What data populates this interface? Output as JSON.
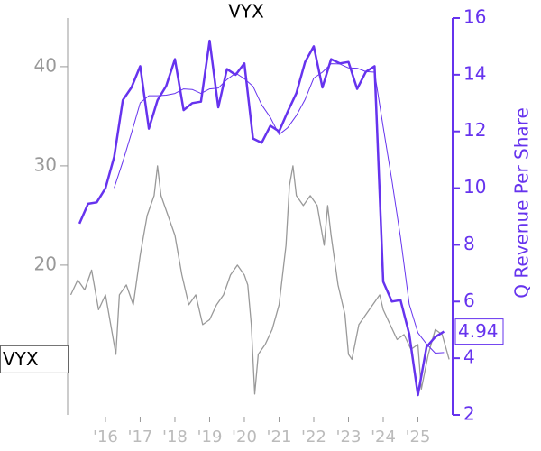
{
  "chart_data": {
    "type": "line",
    "title": "VYX",
    "y2label": "Q Revenue Per Share",
    "xlim": [
      2014.91,
      2026.0
    ],
    "xticks": [
      {
        "value": 2016,
        "label": "'16"
      },
      {
        "value": 2017,
        "label": "'17"
      },
      {
        "value": 2018,
        "label": "'18"
      },
      {
        "value": 2019,
        "label": "'19"
      },
      {
        "value": 2020,
        "label": "'20"
      },
      {
        "value": 2021,
        "label": "'21"
      },
      {
        "value": 2022,
        "label": "'22"
      },
      {
        "value": 2023,
        "label": "'23"
      },
      {
        "value": 2024,
        "label": "'24"
      },
      {
        "value": 2025,
        "label": "'25"
      }
    ],
    "ylim": [
      4.9,
      44.9
    ],
    "yticks": [
      20,
      30,
      40
    ],
    "y2lim": [
      2,
      16
    ],
    "y2ticks": [
      2,
      4,
      6,
      8,
      10,
      12,
      14,
      16
    ],
    "series": [
      {
        "name": "VYX",
        "color": "#999999",
        "axis": "y",
        "x": [
          2015.0,
          2015.2,
          2015.4,
          2015.6,
          2015.8,
          2016.0,
          2016.2,
          2016.3,
          2016.4,
          2016.6,
          2016.8,
          2017.0,
          2017.1,
          2017.2,
          2017.4,
          2017.5,
          2017.6,
          2017.8,
          2018.0,
          2018.2,
          2018.4,
          2018.6,
          2018.8,
          2019.0,
          2019.2,
          2019.4,
          2019.6,
          2019.8,
          2020.0,
          2020.1,
          2020.2,
          2020.3,
          2020.4,
          2020.6,
          2020.8,
          2021.0,
          2021.2,
          2021.3,
          2021.4,
          2021.5,
          2021.7,
          2021.9,
          2022.1,
          2022.3,
          2022.4,
          2022.5,
          2022.7,
          2022.9,
          2023.0,
          2023.1,
          2023.3,
          2023.5,
          2023.7,
          2023.9,
          2024.0,
          2024.2,
          2024.4,
          2024.6,
          2024.8,
          2025.0,
          2025.1,
          2025.3,
          2025.5,
          2025.7,
          2025.9
        ],
        "values": [
          17,
          18.5,
          17.5,
          19.5,
          15.5,
          17,
          13,
          11,
          17,
          18,
          16,
          21,
          23,
          25,
          27,
          30,
          27,
          25,
          23,
          19,
          16,
          17,
          14,
          14.5,
          16,
          17,
          19,
          20,
          19,
          18,
          14,
          7,
          11,
          12,
          13.5,
          16,
          22,
          28,
          30,
          27,
          26,
          27,
          26,
          22,
          26,
          23,
          18,
          15,
          11,
          10.5,
          14,
          15,
          16,
          17,
          15.5,
          14,
          12.5,
          13,
          11.5,
          12,
          7.5,
          11,
          13.5,
          13,
          10.5
        ]
      },
      {
        "color": "#6633ee",
        "axis": "y2",
        "x": [
          2015.25,
          2015.5,
          2015.75,
          2016.0,
          2016.25,
          2016.5,
          2016.75,
          2017.0,
          2017.25,
          2017.5,
          2017.75,
          2018.0,
          2018.25,
          2018.5,
          2018.75,
          2019.0,
          2019.25,
          2019.5,
          2019.75,
          2020.0,
          2020.25,
          2020.5,
          2020.75,
          2021.0,
          2021.25,
          2021.5,
          2021.75,
          2022.0,
          2022.25,
          2022.5,
          2022.75,
          2023.0,
          2023.25,
          2023.5,
          2023.75,
          2024.0,
          2024.25,
          2024.5,
          2024.75,
          2025.0,
          2025.25,
          2025.5,
          2025.75
        ],
        "values": [
          8.75,
          9.45,
          9.5,
          10.0,
          11.1,
          13.1,
          13.55,
          14.3,
          12.1,
          13.1,
          13.6,
          14.55,
          12.75,
          13.0,
          13.05,
          15.2,
          12.85,
          14.2,
          14.0,
          14.4,
          11.75,
          11.6,
          12.2,
          12.0,
          12.7,
          13.35,
          14.45,
          15.0,
          13.55,
          14.55,
          14.4,
          14.45,
          13.5,
          14.1,
          14.3,
          6.7,
          6.0,
          6.05,
          4.85,
          2.7,
          4.4,
          4.75,
          4.94
        ]
      },
      {
        "color": "#6633ee",
        "axis": "y2",
        "x": [
          2015.25,
          2015.5,
          2015.75,
          2016.0,
          2016.25,
          2016.5,
          2016.75,
          2017.0,
          2017.25,
          2017.5,
          2017.75,
          2018.0,
          2018.25,
          2018.5,
          2018.75,
          2019.0,
          2019.25,
          2019.5,
          2019.75,
          2020.0,
          2020.25,
          2020.5,
          2020.75,
          2021.0,
          2021.25,
          2021.5,
          2021.75,
          2022.0,
          2022.25,
          2022.5,
          2022.75,
          2023.0,
          2023.25,
          2023.5,
          2023.75,
          2024.0,
          2024.25,
          2024.5,
          2024.75,
          2025.0,
          2025.25,
          2025.5,
          2025.75
        ],
        "values": [
          null,
          null,
          null,
          null,
          10.01,
          10.93,
          11.94,
          13.01,
          13.26,
          13.26,
          13.28,
          13.34,
          13.5,
          13.48,
          13.34,
          13.5,
          13.53,
          13.83,
          14.06,
          13.86,
          13.59,
          12.94,
          12.49,
          11.89,
          12.13,
          12.56,
          13.13,
          13.88,
          14.09,
          14.39,
          14.38,
          14.24,
          14.23,
          14.11,
          14.09,
          12.15,
          10.28,
          8.26,
          5.9,
          4.9,
          4.5,
          4.18,
          4.2
        ]
      }
    ]
  }
}
